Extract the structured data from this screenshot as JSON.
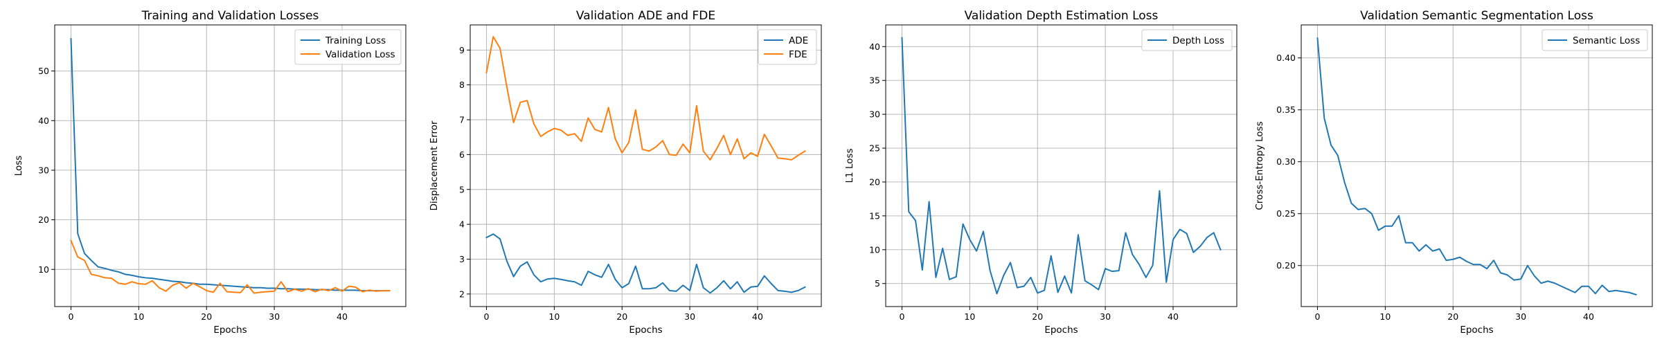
{
  "chart_data": [
    {
      "type": "line",
      "title": "Training and Validation Losses",
      "xlabel": "Epochs",
      "ylabel": "Loss",
      "xlim": [
        -2.4,
        49.4
      ],
      "ylim": [
        2.5,
        59.3
      ],
      "xticks": [
        0,
        10,
        20,
        30,
        40
      ],
      "yticks": [
        10,
        20,
        30,
        40,
        50
      ],
      "grid": true,
      "legend": "top-right",
      "series": [
        {
          "name": "Training Loss",
          "color": "#1f77b4",
          "values": [
            56.5,
            17.2,
            13.2,
            11.8,
            10.5,
            10.2,
            9.8,
            9.5,
            9.0,
            8.8,
            8.5,
            8.3,
            8.2,
            8.0,
            7.8,
            7.6,
            7.5,
            7.3,
            7.2,
            7.0,
            7.0,
            6.9,
            6.8,
            6.7,
            6.6,
            6.5,
            6.4,
            6.3,
            6.3,
            6.2,
            6.2,
            6.1,
            6.1,
            6.0,
            6.0,
            6.0,
            5.9,
            5.9,
            5.9,
            5.8,
            5.8,
            5.8,
            5.8,
            5.7,
            5.7,
            5.7,
            5.7,
            5.7
          ]
        },
        {
          "name": "Validation Loss",
          "color": "#ff7f0e",
          "values": [
            15.8,
            12.5,
            11.8,
            9.0,
            8.7,
            8.3,
            8.2,
            7.2,
            7.0,
            7.5,
            7.1,
            7.0,
            7.7,
            6.3,
            5.6,
            6.8,
            7.3,
            6.2,
            7.2,
            6.5,
            5.7,
            5.4,
            7.2,
            5.5,
            5.4,
            5.3,
            6.9,
            5.2,
            5.4,
            5.5,
            5.6,
            7.5,
            5.5,
            6.0,
            5.6,
            6.1,
            5.5,
            6.0,
            5.7,
            6.3,
            5.6,
            6.6,
            6.4,
            5.5,
            5.8,
            5.6,
            5.7,
            5.7
          ]
        }
      ]
    },
    {
      "type": "line",
      "title": "Validation ADE and FDE",
      "xlabel": "Epochs",
      "ylabel": "Displacement Error",
      "xlim": [
        -2.4,
        49.4
      ],
      "ylim": [
        1.64,
        9.72
      ],
      "xticks": [
        0,
        10,
        20,
        30,
        40
      ],
      "yticks": [
        2,
        3,
        4,
        5,
        6,
        7,
        8,
        9
      ],
      "grid": true,
      "legend": "top-right",
      "series": [
        {
          "name": "ADE",
          "color": "#1f77b4",
          "values": [
            3.62,
            3.72,
            3.58,
            2.95,
            2.5,
            2.8,
            2.92,
            2.55,
            2.35,
            2.43,
            2.45,
            2.42,
            2.38,
            2.35,
            2.25,
            2.65,
            2.55,
            2.48,
            2.85,
            2.42,
            2.18,
            2.3,
            2.8,
            2.15,
            2.15,
            2.18,
            2.32,
            2.1,
            2.08,
            2.25,
            2.1,
            2.85,
            2.18,
            2.03,
            2.18,
            2.38,
            2.15,
            2.35,
            2.05,
            2.2,
            2.22,
            2.52,
            2.3,
            2.1,
            2.08,
            2.05,
            2.1,
            2.2
          ]
        },
        {
          "name": "FDE",
          "color": "#ff7f0e",
          "values": [
            8.35,
            9.38,
            9.05,
            7.95,
            6.92,
            7.5,
            7.55,
            6.88,
            6.52,
            6.65,
            6.75,
            6.7,
            6.55,
            6.6,
            6.38,
            7.05,
            6.72,
            6.65,
            7.35,
            6.45,
            6.05,
            6.35,
            7.28,
            6.15,
            6.1,
            6.22,
            6.4,
            6.0,
            5.98,
            6.3,
            6.05,
            7.4,
            6.1,
            5.85,
            6.18,
            6.55,
            6.0,
            6.45,
            5.88,
            6.05,
            5.95,
            6.58,
            6.25,
            5.9,
            5.88,
            5.85,
            5.98,
            6.1
          ]
        }
      ]
    },
    {
      "type": "line",
      "title": "Validation Depth Estimation Loss",
      "xlabel": "Epochs",
      "ylabel": "L1 Loss",
      "xlim": [
        -2.4,
        49.4
      ],
      "ylim": [
        1.6,
        43.2
      ],
      "xticks": [
        0,
        10,
        20,
        30,
        40
      ],
      "yticks": [
        5,
        10,
        15,
        20,
        25,
        30,
        35,
        40
      ],
      "grid": true,
      "legend": "top-right",
      "series": [
        {
          "name": "Depth Loss",
          "color": "#1f77b4",
          "values": [
            41.3,
            15.6,
            14.3,
            7.0,
            17.1,
            5.9,
            10.2,
            5.6,
            6.0,
            13.8,
            11.5,
            9.8,
            12.7,
            6.9,
            3.5,
            6.2,
            8.1,
            4.4,
            4.6,
            5.9,
            3.6,
            4.0,
            9.1,
            3.7,
            6.1,
            3.6,
            12.2,
            5.4,
            4.8,
            4.1,
            7.2,
            6.8,
            6.9,
            12.5,
            9.3,
            7.8,
            5.9,
            7.7,
            18.7,
            5.2,
            11.5,
            13.0,
            12.4,
            9.6,
            10.5,
            11.8,
            12.5,
            10.0
          ]
        }
      ]
    },
    {
      "type": "line",
      "title": "Validation Semantic Segmentation Loss",
      "xlabel": "Epochs",
      "ylabel": "Cross-Entropy Loss",
      "xlim": [
        -2.4,
        49.4
      ],
      "ylim": [
        0.1605,
        0.4318
      ],
      "xticks": [
        0,
        10,
        20,
        30,
        40
      ],
      "yticks": [
        0.2,
        0.25,
        0.3,
        0.35,
        0.4
      ],
      "ytick_labels": [
        "0.20",
        "0.25",
        "0.30",
        "0.35",
        "0.40"
      ],
      "grid": true,
      "legend": "top-right",
      "series": [
        {
          "name": "Semantic Loss",
          "color": "#1f77b4",
          "values": [
            0.419,
            0.342,
            0.316,
            0.306,
            0.28,
            0.26,
            0.254,
            0.255,
            0.25,
            0.234,
            0.238,
            0.238,
            0.248,
            0.222,
            0.222,
            0.214,
            0.22,
            0.214,
            0.216,
            0.205,
            0.206,
            0.208,
            0.204,
            0.201,
            0.201,
            0.197,
            0.205,
            0.193,
            0.191,
            0.186,
            0.187,
            0.2,
            0.19,
            0.183,
            0.185,
            0.183,
            0.18,
            0.177,
            0.174,
            0.18,
            0.18,
            0.173,
            0.181,
            0.175,
            0.176,
            0.175,
            0.174,
            0.172
          ]
        }
      ]
    }
  ]
}
